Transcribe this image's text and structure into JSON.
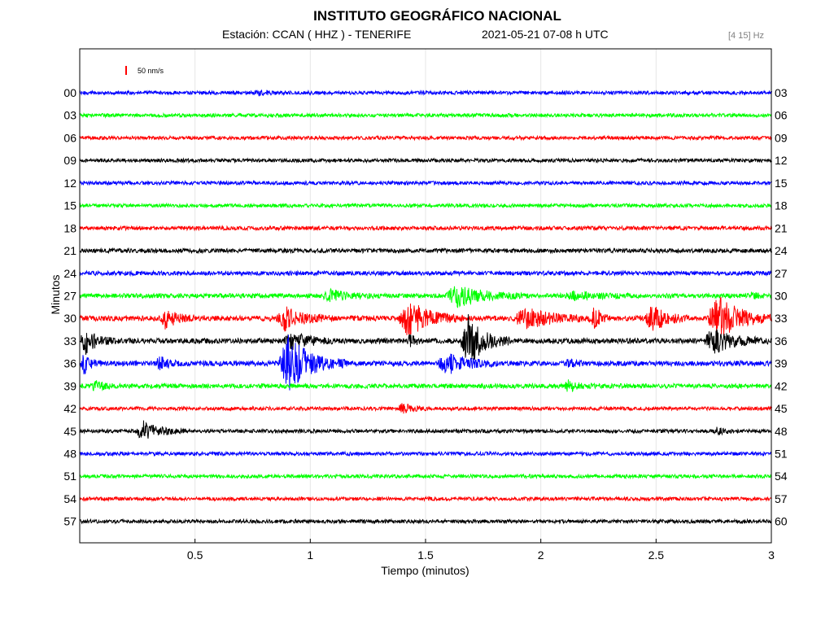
{
  "header": {
    "title": "INSTITUTO GEOGRÁFICO NACIONAL",
    "station": "Estación:  CCAN ( HHZ ) - TENERIFE",
    "datetime": "2021-05-21  07-08 h UTC",
    "band": "[4 15] Hz"
  },
  "chart_data": {
    "type": "line",
    "chart_kind": "helicorder",
    "xlabel": "Tiempo (minutos)",
    "ylabel": "Minutos",
    "xlim": [
      0,
      3
    ],
    "x_ticks": [
      "0.5",
      "1",
      "1.5",
      "2",
      "2.5",
      "3"
    ],
    "x_tick_values": [
      0.5,
      1,
      1.5,
      2,
      2.5,
      3
    ],
    "grid": "vertical",
    "scale_bar_label": "50 nm/s",
    "scale_bar_color": "#ff0000",
    "trace_colors": [
      "#0000ff",
      "#00ff00",
      "#ff0000",
      "#000000"
    ],
    "rows": [
      {
        "left": "00",
        "right": "03",
        "color": "#0000ff",
        "noise": 2.2,
        "events": [
          {
            "t": 0.75,
            "dur": 0.12,
            "amp": 3
          }
        ]
      },
      {
        "left": "03",
        "right": "06",
        "color": "#00ff00",
        "noise": 2.2,
        "events": []
      },
      {
        "left": "06",
        "right": "09",
        "color": "#ff0000",
        "noise": 2.2,
        "events": []
      },
      {
        "left": "09",
        "right": "12",
        "color": "#000000",
        "noise": 2.2,
        "events": []
      },
      {
        "left": "12",
        "right": "15",
        "color": "#0000ff",
        "noise": 2.2,
        "events": []
      },
      {
        "left": "15",
        "right": "18",
        "color": "#00ff00",
        "noise": 2.2,
        "events": []
      },
      {
        "left": "18",
        "right": "21",
        "color": "#ff0000",
        "noise": 2.4,
        "events": []
      },
      {
        "left": "21",
        "right": "24",
        "color": "#000000",
        "noise": 2.6,
        "events": []
      },
      {
        "left": "24",
        "right": "27",
        "color": "#0000ff",
        "noise": 2.6,
        "events": []
      },
      {
        "left": "27",
        "right": "30",
        "color": "#00ff00",
        "noise": 2.8,
        "events": [
          {
            "t": 1.05,
            "dur": 0.25,
            "amp": 6
          },
          {
            "t": 1.58,
            "dur": 0.35,
            "amp": 13
          },
          {
            "t": 2.1,
            "dur": 0.3,
            "amp": 5
          },
          {
            "t": 2.9,
            "dur": 0.08,
            "amp": 4
          }
        ]
      },
      {
        "left": "30",
        "right": "33",
        "color": "#ff0000",
        "noise": 3.2,
        "events": [
          {
            "t": 0.35,
            "dur": 0.15,
            "amp": 12
          },
          {
            "t": 0.85,
            "dur": 0.25,
            "amp": 14
          },
          {
            "t": 1.38,
            "dur": 0.28,
            "amp": 22
          },
          {
            "t": 1.88,
            "dur": 0.35,
            "amp": 12
          },
          {
            "t": 2.22,
            "dur": 0.08,
            "amp": 16
          },
          {
            "t": 2.45,
            "dur": 0.2,
            "amp": 16
          },
          {
            "t": 2.72,
            "dur": 0.28,
            "amp": 30
          }
        ]
      },
      {
        "left": "33",
        "right": "36",
        "color": "#000000",
        "noise": 3.2,
        "events": [
          {
            "t": 0.0,
            "dur": 0.16,
            "amp": 14
          },
          {
            "t": 0.88,
            "dur": 0.25,
            "amp": 10
          },
          {
            "t": 1.42,
            "dur": 0.08,
            "amp": 6
          },
          {
            "t": 1.65,
            "dur": 0.22,
            "amp": 30
          },
          {
            "t": 2.7,
            "dur": 0.3,
            "amp": 14
          }
        ]
      },
      {
        "left": "36",
        "right": "39",
        "color": "#0000ff",
        "noise": 3.0,
        "events": [
          {
            "t": 0.0,
            "dur": 0.1,
            "amp": 12
          },
          {
            "t": 0.33,
            "dur": 0.1,
            "amp": 10
          },
          {
            "t": 0.86,
            "dur": 0.3,
            "amp": 34
          },
          {
            "t": 1.55,
            "dur": 0.28,
            "amp": 12
          },
          {
            "t": 2.1,
            "dur": 0.1,
            "amp": 5
          }
        ]
      },
      {
        "left": "39",
        "right": "42",
        "color": "#00ff00",
        "noise": 2.8,
        "events": [
          {
            "t": 0.05,
            "dur": 0.1,
            "amp": 7
          },
          {
            "t": 2.1,
            "dur": 0.12,
            "amp": 6
          }
        ]
      },
      {
        "left": "42",
        "right": "45",
        "color": "#ff0000",
        "noise": 2.2,
        "events": [
          {
            "t": 1.38,
            "dur": 0.12,
            "amp": 6
          }
        ]
      },
      {
        "left": "45",
        "right": "48",
        "color": "#000000",
        "noise": 2.2,
        "events": [
          {
            "t": 0.24,
            "dur": 0.22,
            "amp": 12
          },
          {
            "t": 2.75,
            "dur": 0.1,
            "amp": 4
          }
        ]
      },
      {
        "left": "48",
        "right": "51",
        "color": "#0000ff",
        "noise": 2.2,
        "events": []
      },
      {
        "left": "51",
        "right": "54",
        "color": "#00ff00",
        "noise": 2.2,
        "events": []
      },
      {
        "left": "54",
        "right": "57",
        "color": "#ff0000",
        "noise": 2.2,
        "events": []
      },
      {
        "left": "57",
        "right": "60",
        "color": "#000000",
        "noise": 2.2,
        "events": []
      }
    ]
  }
}
